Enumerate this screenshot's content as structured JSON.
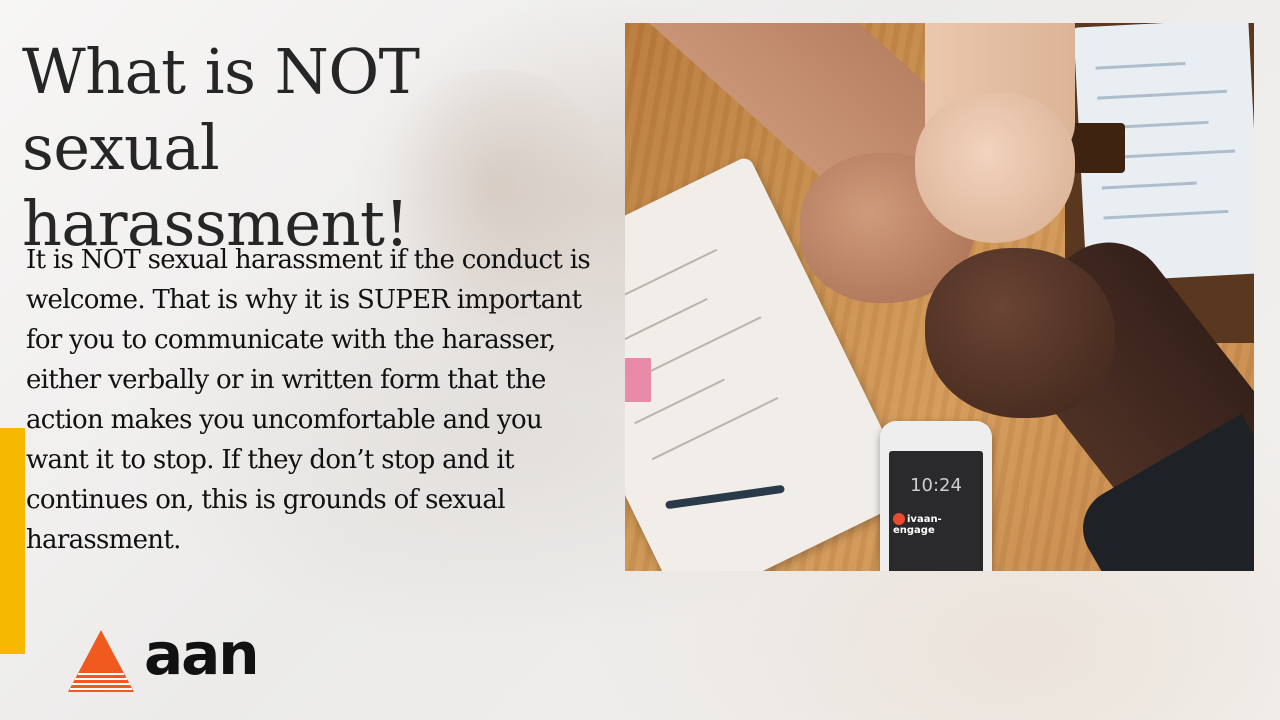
{
  "slide": {
    "title": "What is NOT sexual harassment!",
    "body": "It is NOT sexual harassment if the conduct is welcome.  That is why it is SUPER important for you to communicate with the harasser, either verbally or in written form that the action makes you uncomfortable and you want it to stop.  If they don’t stop and it continues on, this is grounds of sexual harassment."
  },
  "photo": {
    "icon": "fist-bump-photo",
    "phone_time": "10:24",
    "phone_brand": "ivaan-engage"
  },
  "logo": {
    "text": "aan",
    "icon": "triangle-logo-icon"
  },
  "colors": {
    "accent_bar": "#f7b800",
    "logo_orange": "#f05a1e",
    "text": "#111111"
  }
}
